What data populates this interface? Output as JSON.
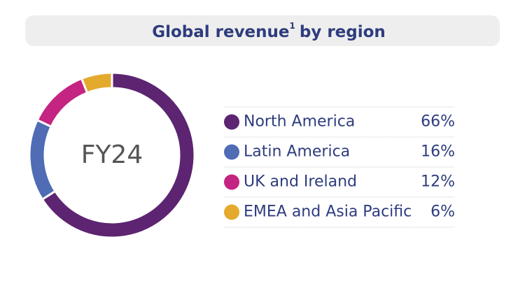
{
  "chart_data": {
    "type": "donut",
    "title": "Global revenue",
    "title_note": "1",
    "title_end": "by region",
    "center_label": "FY24",
    "categories": [
      "North America",
      "Latin America",
      "UK and Ireland",
      "EMEA and Asia Pacific"
    ],
    "values": [
      66,
      16,
      12,
      6
    ],
    "value_labels": [
      "66%",
      "16%",
      "12%",
      "6%"
    ],
    "colors": [
      "#5c2471",
      "#4f6cb5",
      "#c42482",
      "#e3aa2e"
    ]
  }
}
